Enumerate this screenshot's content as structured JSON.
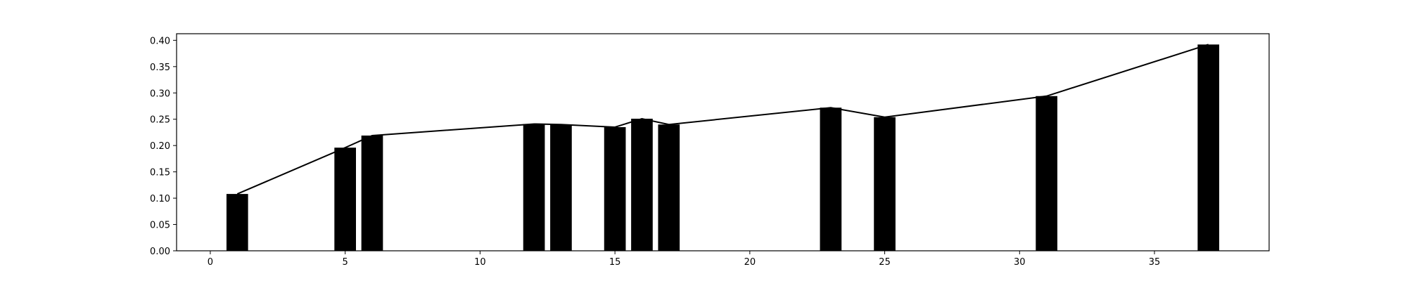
{
  "chart_data": {
    "type": "bar",
    "title": "",
    "xlabel": "",
    "ylabel": "",
    "xlim": [
      -1.25,
      39.25
    ],
    "ylim": [
      0,
      0.4125
    ],
    "x_ticks": [
      0,
      5,
      10,
      15,
      20,
      25,
      30,
      35
    ],
    "y_ticks": [
      0.0,
      0.05,
      0.1,
      0.15,
      0.2,
      0.25,
      0.3,
      0.35,
      0.4
    ],
    "y_tick_labels": [
      "0.00",
      "0.05",
      "0.10",
      "0.15",
      "0.20",
      "0.25",
      "0.30",
      "0.35",
      "0.40"
    ],
    "x_tick_labels": [
      "0",
      "5",
      "10",
      "15",
      "20",
      "25",
      "30",
      "35"
    ],
    "grid": false,
    "series": [
      {
        "type": "bar",
        "color": "#000000",
        "x": [
          1,
          5,
          6,
          12,
          13,
          15,
          16,
          17,
          23,
          25,
          31,
          37
        ],
        "values": [
          0.108,
          0.196,
          0.219,
          0.241,
          0.24,
          0.235,
          0.251,
          0.24,
          0.272,
          0.254,
          0.294,
          0.392
        ]
      },
      {
        "type": "line",
        "color": "#000000",
        "x": [
          1,
          5,
          6,
          12,
          13,
          15,
          16,
          17,
          23,
          25,
          31,
          37
        ],
        "values": [
          0.108,
          0.196,
          0.219,
          0.241,
          0.24,
          0.235,
          0.251,
          0.24,
          0.272,
          0.254,
          0.294,
          0.392
        ]
      }
    ]
  }
}
